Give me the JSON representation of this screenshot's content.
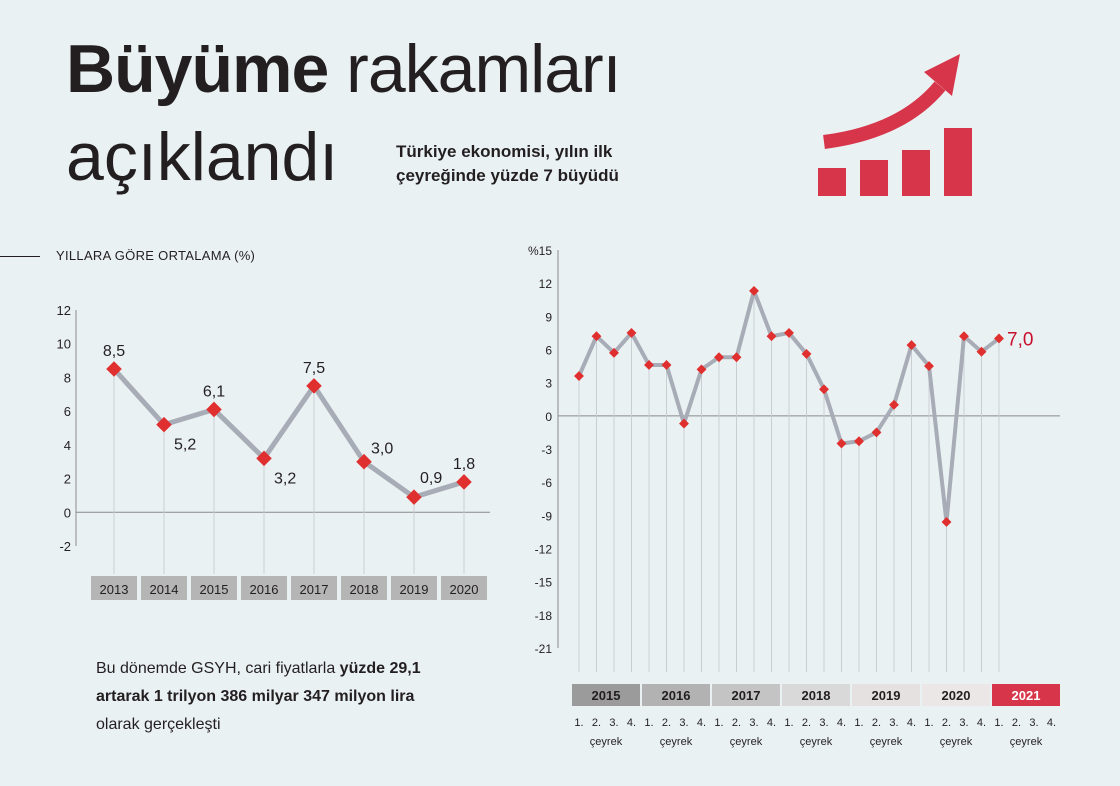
{
  "header": {
    "title_bold": "Büyüme",
    "title_rest": " rakamları",
    "title_line2": "açıklandı",
    "subtitle_line1": "Türkiye ekonomisi, yılın ilk",
    "subtitle_line2": "çeyreğinde yüzde 7 büyüdü",
    "icon": "growth-arrow-bars-icon",
    "accent_color": "#d7354a"
  },
  "section_title": "YILLARA GÖRE ORTALAMA (%)",
  "note": {
    "part1": "Bu dönemde GSYH, cari fiyatlarla ",
    "bold": "yüzde 29,1 artarak 1 trilyon 386 milyar 347 milyon lira",
    "part2": " olarak gerçekleşti"
  },
  "chart_data": [
    {
      "type": "line",
      "title": "YILLARA GÖRE ORTALAMA (%)",
      "categories": [
        "2013",
        "2014",
        "2015",
        "2016",
        "2017",
        "2018",
        "2019",
        "2020"
      ],
      "values": [
        8.5,
        5.2,
        6.1,
        3.2,
        7.5,
        3.0,
        0.9,
        1.8
      ],
      "value_labels": [
        "8,5",
        "5,2",
        "6,1",
        "3,2",
        "7,5",
        "3,0",
        "0,9",
        "1,8"
      ],
      "ylim": [
        -2,
        12
      ],
      "yticks": [
        "12",
        "10",
        "8",
        "6",
        "4",
        "2",
        "0",
        "-2"
      ],
      "line_color": "#a8acb6",
      "marker_color": "#e02f2f",
      "grid": false
    },
    {
      "type": "line",
      "ylim": [
        -21,
        15
      ],
      "yticks": [
        "%15",
        "12",
        "9",
        "6",
        "3",
        "0",
        "-3",
        "-6",
        "-9",
        "-12",
        "-15",
        "-18",
        "-21"
      ],
      "years": [
        "2015",
        "2016",
        "2017",
        "2018",
        "2019",
        "2020",
        "2021"
      ],
      "year_colors": [
        "#9b9b9b",
        "#b2b2b2",
        "#c4c4c4",
        "#d9d9d9",
        "#e6e1e1",
        "#ebe7e7",
        "#d7354a"
      ],
      "quarter_labels": [
        "1.",
        "2.",
        "3.",
        "4."
      ],
      "quarter_word": "çeyrek",
      "values": [
        3.6,
        7.2,
        5.7,
        7.5,
        4.6,
        4.6,
        -0.7,
        4.2,
        5.3,
        5.3,
        11.3,
        7.2,
        7.5,
        5.6,
        2.4,
        -2.5,
        -2.3,
        -1.5,
        1.0,
        6.4,
        4.5,
        -9.6,
        7.2,
        5.8,
        7.0
      ],
      "highlight_label": "7,0",
      "line_color": "#a8acb6",
      "marker_color": "#e02f2f",
      "highlight_color": "#c8102e"
    }
  ]
}
